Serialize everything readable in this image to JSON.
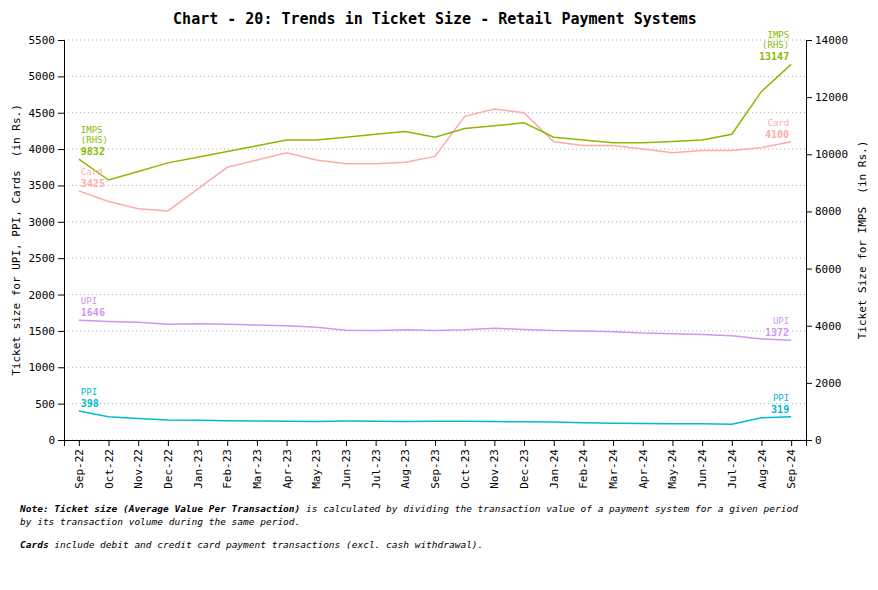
{
  "chart_data": {
    "type": "line",
    "title": "Chart - 20: Trends in Ticket Size - Retail Payment Systems",
    "categories": [
      "Sep-22",
      "Oct-22",
      "Nov-22",
      "Dec-22",
      "Jan-23",
      "Feb-23",
      "Mar-23",
      "Apr-23",
      "May-23",
      "Jun-23",
      "Jul-23",
      "Aug-23",
      "Sep-23",
      "Oct-23",
      "Nov-23",
      "Dec-23",
      "Jan-24",
      "Feb-24",
      "Mar-24",
      "Apr-24",
      "May-24",
      "Jun-24",
      "Jul-24",
      "Aug-24",
      "Sep-24"
    ],
    "series": [
      {
        "name": "Card",
        "color": "#ffaaaa",
        "values": [
          3425,
          3280,
          3180,
          3150,
          3450,
          3750,
          3850,
          3950,
          3850,
          3800,
          3800,
          3820,
          3900,
          4450,
          4550,
          4500,
          4100,
          4050,
          4050,
          4000,
          3950,
          3980,
          3980,
          4020,
          4100
        ]
      },
      {
        "name": "UPI",
        "color": "#cc99ee",
        "values": [
          1646,
          1630,
          1620,
          1590,
          1600,
          1590,
          1580,
          1570,
          1550,
          1510,
          1505,
          1515,
          1505,
          1515,
          1535,
          1520,
          1505,
          1500,
          1490,
          1470,
          1460,
          1450,
          1435,
          1390,
          1372
        ]
      },
      {
        "name": "PPI",
        "color": "#00bbcc",
        "values": [
          398,
          320,
          295,
          275,
          270,
          265,
          260,
          258,
          255,
          260,
          258,
          253,
          258,
          258,
          253,
          252,
          248,
          238,
          232,
          228,
          222,
          222,
          218,
          305,
          319
        ]
      },
      {
        "name": "IMPS\n(RHS)",
        "color": "#88bb00",
        "axis": "y2",
        "values": [
          9832,
          9100,
          9400,
          9700,
          9900,
          10100,
          10300,
          10500,
          10500,
          10600,
          10700,
          10800,
          10600,
          10900,
          11000,
          11100,
          10600,
          10500,
          10400,
          10400,
          10450,
          10500,
          10700,
          12200,
          13147
        ]
      }
    ],
    "ylabel": "Ticket size for UPI, PPI, Cards  (in Rs.)",
    "y2label": "Ticket Size for IMPS  (in Rs.)",
    "ylim": [
      0,
      5500
    ],
    "yticks": [
      0,
      500,
      1000,
      1500,
      2000,
      2500,
      3000,
      3500,
      4000,
      4500,
      5000,
      5500
    ],
    "y2lim": [
      0,
      14000
    ],
    "y2ticks": [
      0,
      2000,
      4000,
      6000,
      8000,
      10000,
      12000,
      14000
    ],
    "grid": true,
    "annotations": [
      {
        "text": "9832",
        "x": "Sep-22",
        "y": 9832,
        "axis": "y2",
        "color": "#88bb00"
      },
      {
        "text": "3425",
        "x": "Sep-22",
        "y": 3425,
        "color": "#ffaaaa"
      },
      {
        "text": "1646",
        "x": "Sep-22",
        "y": 1646,
        "color": "#cc99ee"
      },
      {
        "text": "398",
        "x": "Sep-22",
        "y": 398,
        "color": "#00bbcc"
      },
      {
        "text": "13147",
        "x": "Sep-24",
        "y": 13147,
        "axis": "y2",
        "color": "#88bb00"
      },
      {
        "text": "4100",
        "x": "Sep-24",
        "y": 4100,
        "color": "#ffaaaa"
      },
      {
        "text": "1372",
        "x": "Sep-24",
        "y": 1372,
        "color": "#cc99ee"
      },
      {
        "text": "319",
        "x": "Sep-24",
        "y": 319,
        "color": "#00bbcc"
      }
    ],
    "notes": [
      {
        "lead": "Note: Ticket size (Average Value Per Transaction)",
        "text": " is calculated by dividing the transaction value of a payment system for a given period\nby its transaction volume during the same period."
      },
      {
        "lead": "Cards",
        "text": " include debit and credit card payment transactions (excl. cash withdrawal)."
      }
    ]
  }
}
